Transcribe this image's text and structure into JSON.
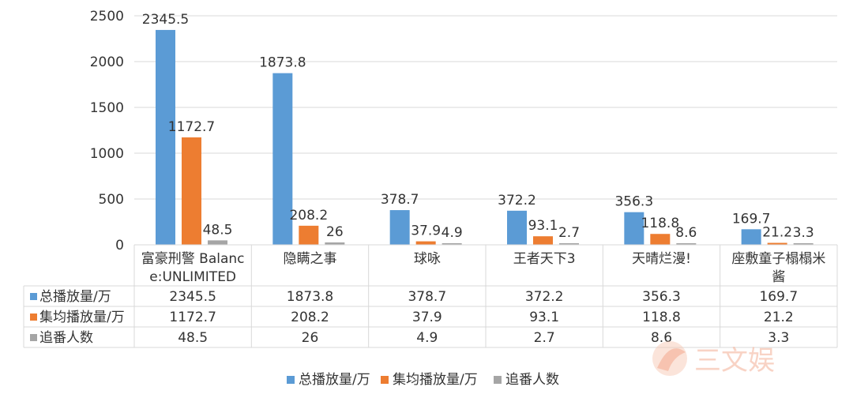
{
  "chart_data": {
    "type": "bar",
    "categories": [
      "富豪刑警 Balance:UNLIMITED",
      "隐瞒之事",
      "球咏",
      "王者天下3",
      "天晴烂漫!",
      "座敷童子榻榻米酱"
    ],
    "category_label_lines": [
      [
        "富豪刑警 Balanc",
        "e:UNLIMITED"
      ],
      [
        "隐瞒之事"
      ],
      [
        "球咏"
      ],
      [
        "王者天下3"
      ],
      [
        "天晴烂漫!"
      ],
      [
        "座敷童子榻榻米",
        "酱"
      ]
    ],
    "series": [
      {
        "name": "总播放量/万",
        "color": "#5b9bd5",
        "values": [
          2345.5,
          1873.8,
          378.7,
          372.2,
          356.3,
          169.7
        ]
      },
      {
        "name": "集均播放量/万",
        "color": "#ed7d31",
        "values": [
          1172.7,
          208.2,
          37.9,
          93.1,
          118.8,
          21.2
        ]
      },
      {
        "name": "追番人数",
        "color": "#a5a5a5",
        "values": [
          48.5,
          26,
          4.9,
          2.7,
          8.6,
          3.3
        ]
      }
    ],
    "ylim": [
      0,
      2500
    ],
    "yticks": [
      0,
      500,
      1000,
      1500,
      2000,
      2500
    ],
    "grid": true,
    "legend": "bottom",
    "data_table": true
  },
  "watermark": {
    "text": "三文娱"
  }
}
